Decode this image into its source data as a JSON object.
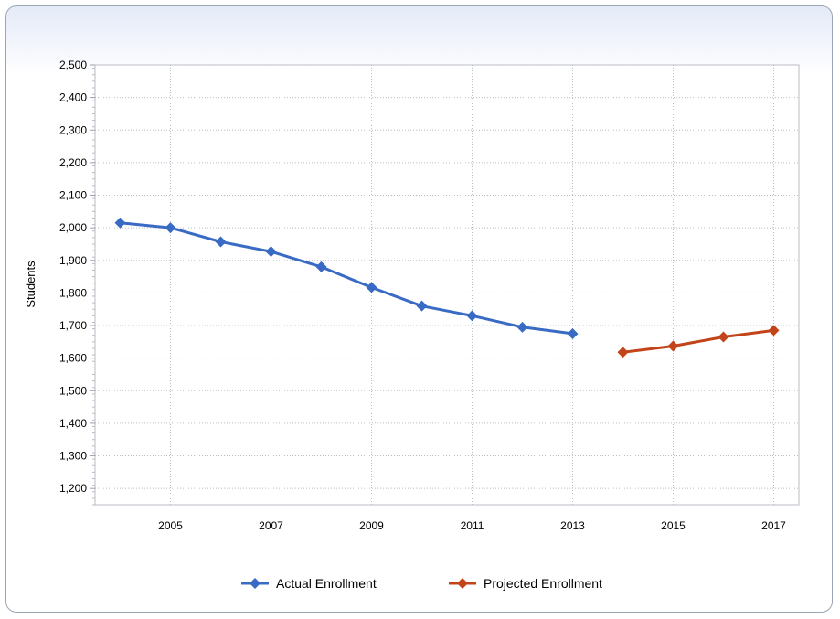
{
  "chart_data": {
    "type": "line",
    "ylabel": "Students",
    "xlabel": "",
    "ylim": [
      1150,
      2500
    ],
    "xlim": [
      2003.5,
      2017.5
    ],
    "x_ticks": [
      2005,
      2007,
      2009,
      2011,
      2013,
      2015,
      2017
    ],
    "y_ticks": [
      1200,
      1300,
      1400,
      1500,
      1600,
      1700,
      1800,
      1900,
      2000,
      2100,
      2200,
      2300,
      2400,
      2500
    ],
    "grid": true,
    "legend_position": "bottom",
    "series": [
      {
        "name": "Actual Enrollment",
        "color": "#3a6bc4",
        "x": [
          2004,
          2005,
          2006,
          2007,
          2008,
          2009,
          2010,
          2011,
          2012,
          2013
        ],
        "values": [
          2015,
          2000,
          1957,
          1927,
          1880,
          1817,
          1760,
          1730,
          1695,
          1675
        ]
      },
      {
        "name": "Projected Enrollment",
        "color": "#c4441a",
        "x": [
          2014,
          2015,
          2016,
          2017
        ],
        "values": [
          1618,
          1637,
          1665,
          1685
        ]
      }
    ]
  }
}
